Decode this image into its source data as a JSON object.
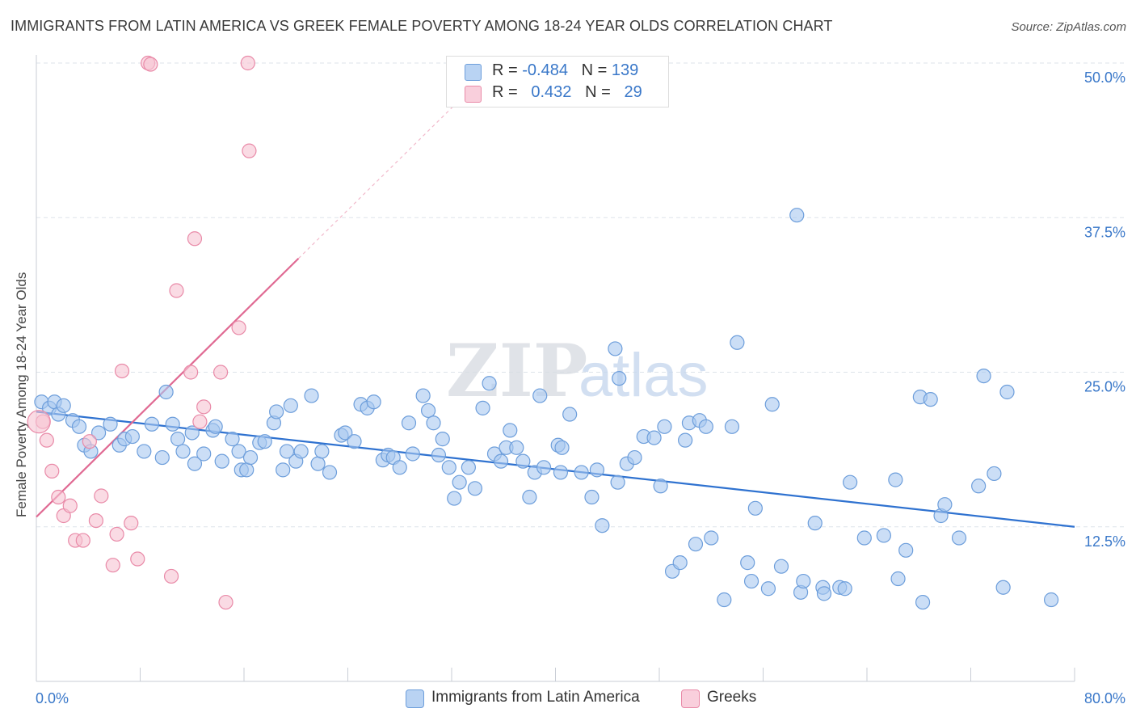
{
  "title": "IMMIGRANTS FROM LATIN AMERICA VS GREEK FEMALE POVERTY AMONG 18-24 YEAR OLDS CORRELATION CHART",
  "source": "Source: ZipAtlas.com",
  "watermark": "ZIPatlas",
  "legend_top": [
    {
      "r_label": "R =",
      "r_value": "-0.484",
      "n_label": "N =",
      "n_value": "139"
    },
    {
      "r_label": "R =",
      "r_value": "0.432",
      "n_label": "N =",
      "n_value": "29"
    }
  ],
  "colors": {
    "blue_fill": "#a9c8f0",
    "blue_stroke": "#6d9edb",
    "blue_line": "#2f72d0",
    "pink_fill": "#f7c3d2",
    "pink_stroke": "#e98aa8",
    "pink_line": "#e06a93",
    "tick_label": "#3a78c9",
    "grid": "#dde3ea"
  },
  "chart_data": {
    "type": "scatter",
    "title": "IMMIGRANTS FROM LATIN AMERICA VS GREEK FEMALE POVERTY AMONG 18-24 YEAR OLDS CORRELATION CHART",
    "xlabel": "",
    "ylabel": "Female Poverty Among 18-24 Year Olds",
    "xlim": [
      0,
      80
    ],
    "ylim": [
      0,
      50
    ],
    "x_tick_labels": [
      "0.0%",
      "80.0%"
    ],
    "y_ticks": [
      12.5,
      25.0,
      37.5,
      50.0
    ],
    "y_tick_labels": [
      "12.5%",
      "25.0%",
      "37.5%",
      "50.0%"
    ],
    "grid": true,
    "legend_position": "bottom",
    "series": [
      {
        "name": "Immigrants from Latin America",
        "color": "#6d9edb",
        "trend": {
          "x": [
            0,
            80
          ],
          "y": [
            21.8,
            12.5
          ]
        },
        "points": [
          [
            0.4,
            22.6
          ],
          [
            1.0,
            22.1
          ],
          [
            1.4,
            22.6
          ],
          [
            1.7,
            21.6
          ],
          [
            2.1,
            22.3
          ],
          [
            2.8,
            21.1
          ],
          [
            3.3,
            20.6
          ],
          [
            3.7,
            19.1
          ],
          [
            4.2,
            18.6
          ],
          [
            4.8,
            20.1
          ],
          [
            5.7,
            20.8
          ],
          [
            6.4,
            19.1
          ],
          [
            6.8,
            19.6
          ],
          [
            7.4,
            19.8
          ],
          [
            8.3,
            18.6
          ],
          [
            8.9,
            20.8
          ],
          [
            9.7,
            18.1
          ],
          [
            10.0,
            23.4
          ],
          [
            10.5,
            20.8
          ],
          [
            10.9,
            19.6
          ],
          [
            11.3,
            18.6
          ],
          [
            12.0,
            20.1
          ],
          [
            12.2,
            17.6
          ],
          [
            12.9,
            18.4
          ],
          [
            13.6,
            20.3
          ],
          [
            13.8,
            20.6
          ],
          [
            14.3,
            17.8
          ],
          [
            15.1,
            19.6
          ],
          [
            15.6,
            18.6
          ],
          [
            15.8,
            17.1
          ],
          [
            16.2,
            17.1
          ],
          [
            16.5,
            18.1
          ],
          [
            17.2,
            19.3
          ],
          [
            17.6,
            19.4
          ],
          [
            18.3,
            20.9
          ],
          [
            18.5,
            21.8
          ],
          [
            19.0,
            17.1
          ],
          [
            19.3,
            18.6
          ],
          [
            19.6,
            22.3
          ],
          [
            20.0,
            17.8
          ],
          [
            20.4,
            18.6
          ],
          [
            21.2,
            23.1
          ],
          [
            21.7,
            17.6
          ],
          [
            22.0,
            18.6
          ],
          [
            22.6,
            16.9
          ],
          [
            23.5,
            19.9
          ],
          [
            23.8,
            20.1
          ],
          [
            24.5,
            19.4
          ],
          [
            25.0,
            22.4
          ],
          [
            25.5,
            22.1
          ],
          [
            26.0,
            22.6
          ],
          [
            26.7,
            17.9
          ],
          [
            27.1,
            18.3
          ],
          [
            27.5,
            18.1
          ],
          [
            28.0,
            17.3
          ],
          [
            28.7,
            20.9
          ],
          [
            29.0,
            18.4
          ],
          [
            29.8,
            23.1
          ],
          [
            30.2,
            21.9
          ],
          [
            30.6,
            20.9
          ],
          [
            31.0,
            18.3
          ],
          [
            31.3,
            19.6
          ],
          [
            31.8,
            17.3
          ],
          [
            32.2,
            14.8
          ],
          [
            32.6,
            16.1
          ],
          [
            33.3,
            17.3
          ],
          [
            33.8,
            15.6
          ],
          [
            34.4,
            22.1
          ],
          [
            34.9,
            24.1
          ],
          [
            35.3,
            18.4
          ],
          [
            35.8,
            17.8
          ],
          [
            36.2,
            18.9
          ],
          [
            36.5,
            20.3
          ],
          [
            37.0,
            18.9
          ],
          [
            37.5,
            17.8
          ],
          [
            38.0,
            14.9
          ],
          [
            38.4,
            16.9
          ],
          [
            38.8,
            23.1
          ],
          [
            39.1,
            17.3
          ],
          [
            40.2,
            19.1
          ],
          [
            40.5,
            18.9
          ],
          [
            40.4,
            16.9
          ],
          [
            41.1,
            21.6
          ],
          [
            42.0,
            16.9
          ],
          [
            42.8,
            14.9
          ],
          [
            43.2,
            17.1
          ],
          [
            43.6,
            12.6
          ],
          [
            44.6,
            26.9
          ],
          [
            44.9,
            24.5
          ],
          [
            44.8,
            16.1
          ],
          [
            45.5,
            17.6
          ],
          [
            46.1,
            18.1
          ],
          [
            46.8,
            19.8
          ],
          [
            47.6,
            19.7
          ],
          [
            48.1,
            15.8
          ],
          [
            48.4,
            20.6
          ],
          [
            49.0,
            8.9
          ],
          [
            49.6,
            9.6
          ],
          [
            50.0,
            19.5
          ],
          [
            50.3,
            20.9
          ],
          [
            50.8,
            11.1
          ],
          [
            51.1,
            21.1
          ],
          [
            51.6,
            20.6
          ],
          [
            52.0,
            11.6
          ],
          [
            53.0,
            6.6
          ],
          [
            53.6,
            20.6
          ],
          [
            54.0,
            27.4
          ],
          [
            54.8,
            9.6
          ],
          [
            55.1,
            8.1
          ],
          [
            55.4,
            14.0
          ],
          [
            56.4,
            7.5
          ],
          [
            56.7,
            22.4
          ],
          [
            57.4,
            9.3
          ],
          [
            58.6,
            37.7
          ],
          [
            58.9,
            7.2
          ],
          [
            59.1,
            8.1
          ],
          [
            60.0,
            12.8
          ],
          [
            60.6,
            7.6
          ],
          [
            60.7,
            7.1
          ],
          [
            61.9,
            7.6
          ],
          [
            62.3,
            7.5
          ],
          [
            62.7,
            16.1
          ],
          [
            63.8,
            11.6
          ],
          [
            65.3,
            11.8
          ],
          [
            66.2,
            16.3
          ],
          [
            66.4,
            8.3
          ],
          [
            67.0,
            10.6
          ],
          [
            68.1,
            23.0
          ],
          [
            68.3,
            6.4
          ],
          [
            68.9,
            22.8
          ],
          [
            69.7,
            13.4
          ],
          [
            70.0,
            14.3
          ],
          [
            71.1,
            11.6
          ],
          [
            72.6,
            15.8
          ],
          [
            73.0,
            24.7
          ],
          [
            73.8,
            16.8
          ],
          [
            74.5,
            7.6
          ],
          [
            74.8,
            23.4
          ],
          [
            78.2,
            6.6
          ]
        ]
      },
      {
        "name": "Greeks",
        "color": "#e98aa8",
        "trend": {
          "x": [
            0,
            20.2
          ],
          "y": [
            13.3,
            34.2
          ]
        },
        "trend_extension": {
          "x": [
            20.2,
            36
          ],
          "y": [
            34.2,
            50.5
          ]
        },
        "points": [
          [
            0.5,
            21.0
          ],
          [
            0.8,
            19.5
          ],
          [
            1.2,
            17.0
          ],
          [
            1.7,
            14.9
          ],
          [
            2.1,
            13.4
          ],
          [
            2.6,
            14.2
          ],
          [
            3.0,
            11.4
          ],
          [
            3.6,
            11.4
          ],
          [
            4.1,
            19.4
          ],
          [
            4.6,
            13.0
          ],
          [
            5.0,
            15.0
          ],
          [
            5.9,
            9.4
          ],
          [
            6.2,
            11.9
          ],
          [
            6.6,
            25.1
          ],
          [
            7.3,
            12.8
          ],
          [
            7.8,
            9.9
          ],
          [
            8.6,
            50.0
          ],
          [
            8.8,
            49.9
          ],
          [
            10.4,
            8.5
          ],
          [
            10.8,
            31.6
          ],
          [
            11.9,
            25.0
          ],
          [
            12.2,
            35.8
          ],
          [
            12.6,
            21.0
          ],
          [
            12.9,
            22.2
          ],
          [
            14.2,
            25.0
          ],
          [
            14.6,
            6.4
          ],
          [
            15.6,
            28.6
          ],
          [
            16.4,
            42.9
          ],
          [
            16.3,
            50.0
          ]
        ]
      }
    ]
  },
  "bottom_legend": [
    {
      "label": "Immigrants from Latin America"
    },
    {
      "label": "Greeks"
    }
  ]
}
